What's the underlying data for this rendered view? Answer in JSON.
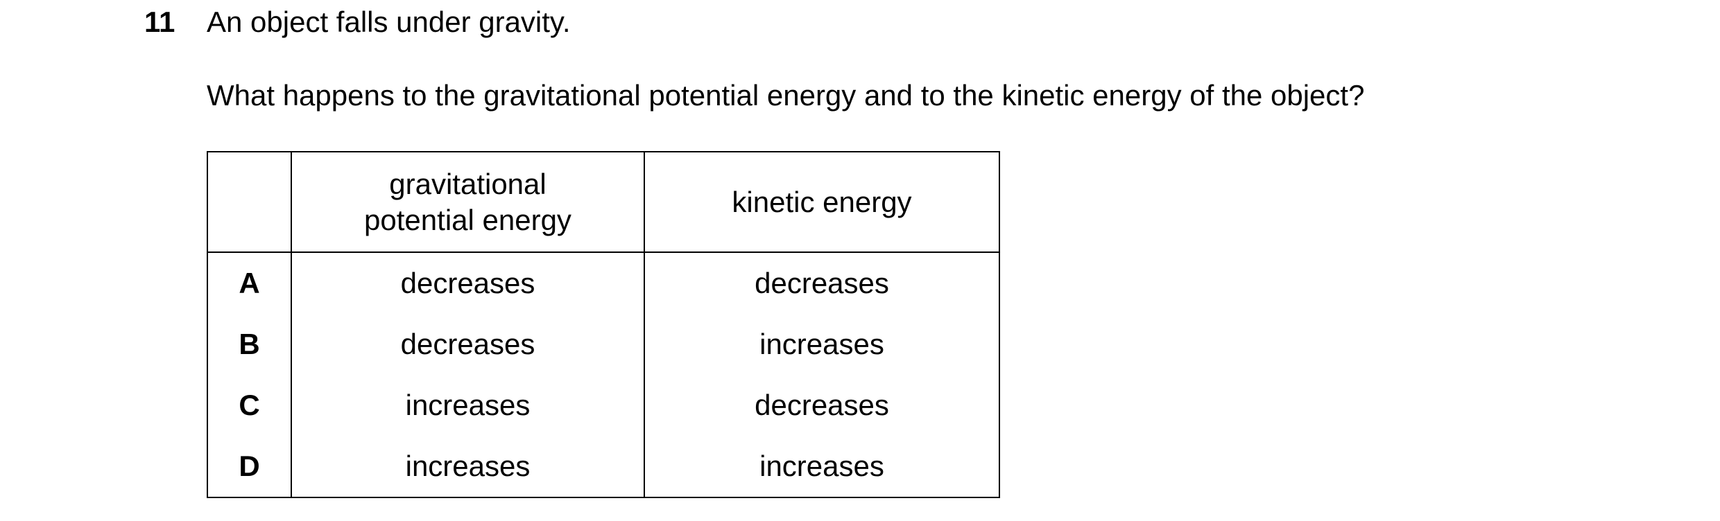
{
  "question": {
    "number": "11",
    "stem": "An object falls under gravity.",
    "prompt": "What happens to the gravitational potential energy and to the kinetic energy of the object?"
  },
  "table": {
    "header": [
      "gravitational potential energy",
      "kinetic energy"
    ],
    "rows": [
      [
        "A",
        "decreases",
        "decreases"
      ],
      [
        "B",
        "decreases",
        "increases"
      ],
      [
        "C",
        "increases",
        "decreases"
      ],
      [
        "D",
        "increases",
        "increases"
      ]
    ]
  }
}
